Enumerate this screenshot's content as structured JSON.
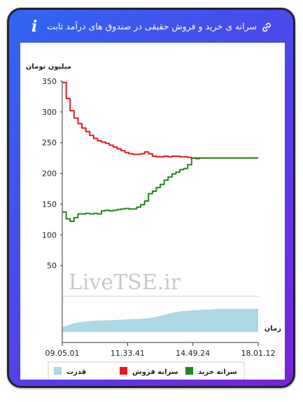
{
  "header": {
    "title": "سرانه ی خرید و فروش حقیقی در صندوق های درآمد ثابت",
    "info_icon": "info-icon",
    "link_icon": "link-icon"
  },
  "watermark": "LiveTSE.ir",
  "chart_data": {
    "type": "line",
    "ylabel": "میلیون تومان",
    "xlabel": "زمان",
    "yticks": [
      50,
      100,
      150,
      200,
      250,
      300,
      350
    ],
    "ylim": [
      0,
      350
    ],
    "xtick_labels": [
      "09.05.01",
      "11.33.41",
      "14.49.24",
      "18.01.12"
    ],
    "x": [
      0,
      0.02,
      0.04,
      0.06,
      0.08,
      0.1,
      0.12,
      0.14,
      0.16,
      0.18,
      0.2,
      0.22,
      0.24,
      0.26,
      0.28,
      0.3,
      0.32,
      0.34,
      0.36,
      0.38,
      0.4,
      0.42,
      0.44,
      0.46,
      0.48,
      0.5,
      0.52,
      0.54,
      0.56,
      0.58,
      0.6,
      0.62,
      0.64,
      0.66,
      0.68,
      0.7,
      0.72,
      0.74,
      0.76,
      0.78,
      0.8,
      0.82,
      0.84,
      0.86,
      0.88,
      0.9,
      0.92,
      0.94,
      0.96,
      0.98,
      1.0
    ],
    "series": [
      {
        "name": "سرانه فروش",
        "color": "#e8191a",
        "values": [
          348,
          322,
          302,
          290,
          281,
          274,
          268,
          262,
          257,
          253,
          251,
          249,
          246,
          243,
          240,
          237,
          234,
          232,
          231,
          231,
          232,
          235,
          232,
          228,
          227,
          227,
          228,
          227,
          228,
          228,
          227,
          227,
          226,
          225,
          224,
          225,
          225,
          225,
          225,
          225,
          225,
          225,
          225,
          225,
          225,
          225,
          225,
          225,
          225,
          225,
          225
        ]
      },
      {
        "name": "سرانه خرید",
        "color": "#22871c",
        "values": [
          137,
          126,
          122,
          128,
          134,
          134,
          135,
          134,
          135,
          134,
          139,
          140,
          139,
          140,
          141,
          142,
          143,
          142,
          142,
          145,
          149,
          155,
          167,
          171,
          177,
          182,
          189,
          194,
          199,
          202,
          206,
          208,
          214,
          225,
          225,
          225,
          225,
          225,
          225,
          225,
          225,
          225,
          225,
          225,
          225,
          225,
          225,
          225,
          225,
          225,
          225
        ]
      },
      {
        "name": "قدرت",
        "color": "#add8e6",
        "values": [
          0.21,
          0.26,
          0.32,
          0.38,
          0.41,
          0.44,
          0.46,
          0.47,
          0.48,
          0.49,
          0.5,
          0.5,
          0.51,
          0.51,
          0.52,
          0.53,
          0.54,
          0.55,
          0.56,
          0.56,
          0.57,
          0.58,
          0.6,
          0.63,
          0.66,
          0.7,
          0.74,
          0.78,
          0.82,
          0.86,
          0.89,
          0.91,
          0.92,
          0.93,
          0.94,
          0.95,
          0.96,
          0.97,
          0.98,
          0.99,
          1.0,
          1.0,
          1.0,
          1.0,
          1.0,
          1.0,
          1.0,
          1.0,
          1.0,
          1.0,
          1.0
        ]
      }
    ],
    "legend": {
      "placement": "bottom",
      "items": [
        {
          "name": "سرانه خرید",
          "color": "#22871c"
        },
        {
          "name": "سرانه فروش",
          "color": "#e8191a"
        },
        {
          "name": "قدرت",
          "color": "#add8e6"
        }
      ]
    }
  }
}
